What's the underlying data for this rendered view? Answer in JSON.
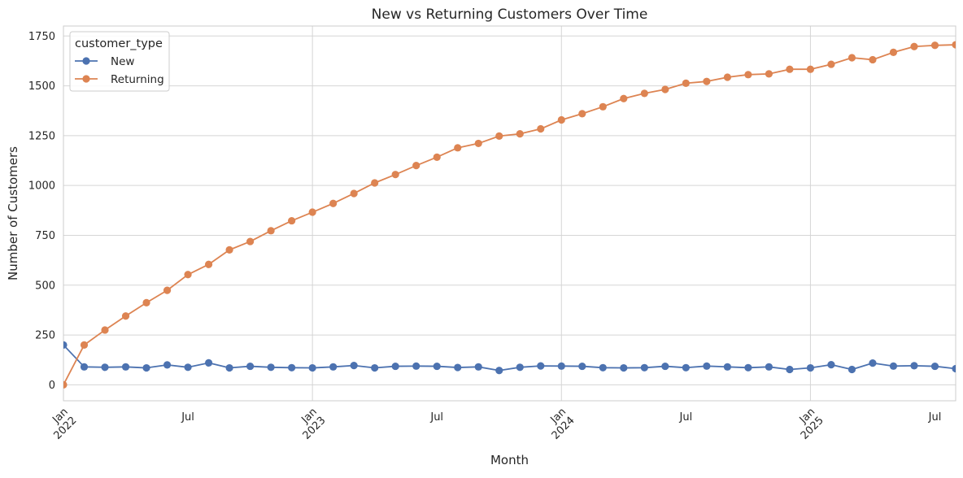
{
  "chart_data": {
    "type": "line",
    "title": "New vs Returning Customers Over Time",
    "xlabel": "Month",
    "ylabel": "Number of Customers",
    "x_start": "2022-01",
    "x_end": "2025-08",
    "xlim": [
      "2022-01",
      "2025-08"
    ],
    "ylim": [
      -80,
      1800
    ],
    "y_ticks": [
      0,
      250,
      500,
      750,
      1000,
      1250,
      1500,
      1750
    ],
    "x_ticks": [
      {
        "month": "2022-01",
        "label": [
          "Jan",
          "2022"
        ]
      },
      {
        "month": "2022-07",
        "label": [
          "Jul"
        ]
      },
      {
        "month": "2023-01",
        "label": [
          "Jan",
          "2023"
        ]
      },
      {
        "month": "2023-07",
        "label": [
          "Jul"
        ]
      },
      {
        "month": "2024-01",
        "label": [
          "Jan",
          "2024"
        ]
      },
      {
        "month": "2024-07",
        "label": [
          "Jul"
        ]
      },
      {
        "month": "2025-01",
        "label": [
          "Jan",
          "2025"
        ]
      },
      {
        "month": "2025-07",
        "label": [
          "Jul"
        ]
      }
    ],
    "grid": true,
    "legend": {
      "title": "customer_type",
      "placement": "upper-left"
    },
    "series": [
      {
        "name": "New",
        "color": "#4c72b0",
        "marker": "circle",
        "values": [
          200,
          90,
          88,
          90,
          85,
          100,
          88,
          110,
          85,
          93,
          88,
          86,
          85,
          90,
          97,
          85,
          93,
          94,
          93,
          87,
          90,
          72,
          88,
          95,
          94,
          93,
          86,
          85,
          86,
          93,
          86,
          94,
          90,
          86,
          90,
          77,
          85,
          101,
          77,
          109,
          94,
          96,
          93,
          81
        ]
      },
      {
        "name": "Returning",
        "color": "#dd8452",
        "marker": "circle",
        "values": [
          0,
          200,
          275,
          345,
          412,
          474,
          553,
          604,
          677,
          719,
          773,
          823,
          866,
          910,
          960,
          1013,
          1055,
          1100,
          1142,
          1189,
          1211,
          1248,
          1259,
          1284,
          1329,
          1360,
          1395,
          1436,
          1462,
          1482,
          1513,
          1522,
          1543,
          1556,
          1560,
          1583,
          1583,
          1608,
          1641,
          1631,
          1668,
          1697,
          1703,
          1706
        ]
      }
    ]
  }
}
